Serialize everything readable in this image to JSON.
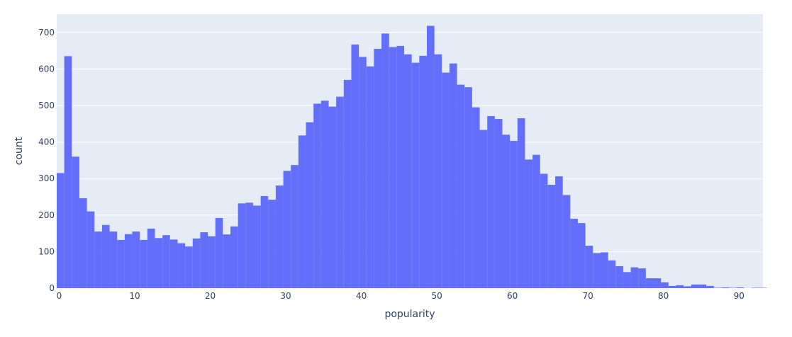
{
  "chart_data": {
    "type": "bar",
    "xlabel": "popularity",
    "ylabel": "count",
    "xlim": [
      0,
      93.5
    ],
    "ylim": [
      0,
      750
    ],
    "bin_width": 1,
    "x_ticks": [
      0,
      10,
      20,
      30,
      40,
      50,
      60,
      70,
      80,
      90
    ],
    "y_ticks": [
      0,
      100,
      200,
      300,
      400,
      500,
      600,
      700
    ],
    "grid": true,
    "legend": "none",
    "colors": {
      "bar": "#636efa",
      "plot_bg": "#e5ecf6",
      "grid": "#ffffff",
      "text": "#2a3f5f"
    },
    "bins": [
      {
        "x": 0,
        "count": 315
      },
      {
        "x": 1,
        "count": 635
      },
      {
        "x": 2,
        "count": 360
      },
      {
        "x": 3,
        "count": 246
      },
      {
        "x": 4,
        "count": 210
      },
      {
        "x": 5,
        "count": 155
      },
      {
        "x": 6,
        "count": 173
      },
      {
        "x": 7,
        "count": 155
      },
      {
        "x": 8,
        "count": 132
      },
      {
        "x": 9,
        "count": 148
      },
      {
        "x": 10,
        "count": 155
      },
      {
        "x": 11,
        "count": 132
      },
      {
        "x": 12,
        "count": 163
      },
      {
        "x": 13,
        "count": 137
      },
      {
        "x": 14,
        "count": 145
      },
      {
        "x": 15,
        "count": 133
      },
      {
        "x": 16,
        "count": 123
      },
      {
        "x": 17,
        "count": 114
      },
      {
        "x": 18,
        "count": 136
      },
      {
        "x": 19,
        "count": 153
      },
      {
        "x": 20,
        "count": 142
      },
      {
        "x": 21,
        "count": 192
      },
      {
        "x": 22,
        "count": 147
      },
      {
        "x": 23,
        "count": 169
      },
      {
        "x": 24,
        "count": 232
      },
      {
        "x": 25,
        "count": 234
      },
      {
        "x": 26,
        "count": 226
      },
      {
        "x": 27,
        "count": 252
      },
      {
        "x": 28,
        "count": 242
      },
      {
        "x": 29,
        "count": 281
      },
      {
        "x": 30,
        "count": 321
      },
      {
        "x": 31,
        "count": 337
      },
      {
        "x": 32,
        "count": 418
      },
      {
        "x": 33,
        "count": 454
      },
      {
        "x": 34,
        "count": 505
      },
      {
        "x": 35,
        "count": 513
      },
      {
        "x": 36,
        "count": 497
      },
      {
        "x": 37,
        "count": 524
      },
      {
        "x": 38,
        "count": 570
      },
      {
        "x": 39,
        "count": 667
      },
      {
        "x": 40,
        "count": 633
      },
      {
        "x": 41,
        "count": 607
      },
      {
        "x": 42,
        "count": 655
      },
      {
        "x": 43,
        "count": 697
      },
      {
        "x": 44,
        "count": 660
      },
      {
        "x": 45,
        "count": 663
      },
      {
        "x": 46,
        "count": 640
      },
      {
        "x": 47,
        "count": 617
      },
      {
        "x": 48,
        "count": 636
      },
      {
        "x": 49,
        "count": 718
      },
      {
        "x": 50,
        "count": 640
      },
      {
        "x": 51,
        "count": 590
      },
      {
        "x": 52,
        "count": 615
      },
      {
        "x": 53,
        "count": 557
      },
      {
        "x": 54,
        "count": 550
      },
      {
        "x": 55,
        "count": 495
      },
      {
        "x": 56,
        "count": 433
      },
      {
        "x": 57,
        "count": 471
      },
      {
        "x": 58,
        "count": 463
      },
      {
        "x": 59,
        "count": 420
      },
      {
        "x": 60,
        "count": 403
      },
      {
        "x": 61,
        "count": 465
      },
      {
        "x": 62,
        "count": 352
      },
      {
        "x": 63,
        "count": 365
      },
      {
        "x": 64,
        "count": 313
      },
      {
        "x": 65,
        "count": 283
      },
      {
        "x": 66,
        "count": 306
      },
      {
        "x": 67,
        "count": 255
      },
      {
        "x": 68,
        "count": 190
      },
      {
        "x": 69,
        "count": 178
      },
      {
        "x": 70,
        "count": 116
      },
      {
        "x": 71,
        "count": 96
      },
      {
        "x": 72,
        "count": 98
      },
      {
        "x": 73,
        "count": 76
      },
      {
        "x": 74,
        "count": 60
      },
      {
        "x": 75,
        "count": 44
      },
      {
        "x": 76,
        "count": 57
      },
      {
        "x": 77,
        "count": 54
      },
      {
        "x": 78,
        "count": 27
      },
      {
        "x": 79,
        "count": 27
      },
      {
        "x": 80,
        "count": 16
      },
      {
        "x": 81,
        "count": 6
      },
      {
        "x": 82,
        "count": 8
      },
      {
        "x": 83,
        "count": 5
      },
      {
        "x": 84,
        "count": 10
      },
      {
        "x": 85,
        "count": 10
      },
      {
        "x": 86,
        "count": 6
      },
      {
        "x": 87,
        "count": 1
      },
      {
        "x": 88,
        "count": 2
      },
      {
        "x": 89,
        "count": 1
      },
      {
        "x": 90,
        "count": 2
      },
      {
        "x": 91,
        "count": 0
      },
      {
        "x": 92,
        "count": 1
      },
      {
        "x": 93,
        "count": 1
      }
    ]
  }
}
